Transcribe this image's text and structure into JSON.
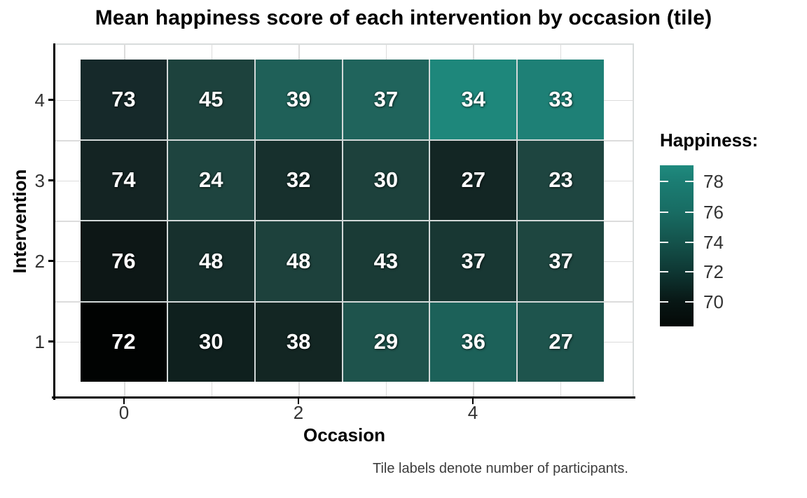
{
  "title": "Mean happiness score of each intervention by occasion (tile)",
  "caption": "Tile labels denote number of participants.",
  "x_axis": {
    "label": "Occasion",
    "tick_labels": [
      "0",
      "2",
      "4"
    ]
  },
  "y_axis": {
    "label": "Intervention",
    "tick_labels": [
      "4",
      "3",
      "2",
      "1"
    ]
  },
  "legend": {
    "title": "Happiness:",
    "tick_labels": [
      "78",
      "76",
      "74",
      "72",
      "70"
    ],
    "gradient_stops": [
      "#1f8a7e 0%",
      "#1b7d73 10%",
      "#186c63 29%",
      "#14524b 48%",
      "#0e3733 66%",
      "#081614 85%",
      "#040907 100%"
    ]
  },
  "colors": {
    "background": "#ffffff",
    "title": "#000000",
    "axis_line": "#000000",
    "tick_label": "#333333",
    "grid_line": "#dcdcdc",
    "panel_border": "#d8dcdc",
    "tile_seam": "#d3d9d9",
    "tile_label": "#ffffff",
    "caption": "#3d3d3d",
    "fill_low": "#040907",
    "fill_high": "#1f8a7e"
  },
  "chart_data": {
    "type": "heatmap",
    "title": "Mean happiness score of each intervention by occasion (tile)",
    "xlabel": "Occasion",
    "ylabel": "Intervention",
    "caption": "Tile labels denote number of participants.",
    "x_tick_values": [
      0,
      2,
      4
    ],
    "x_range": [
      -0.5,
      5.5
    ],
    "y_range": [
      0.5,
      4.5
    ],
    "occasions": [
      0,
      1,
      2,
      3,
      4,
      5
    ],
    "interventions_top_to_bottom": [
      4,
      3,
      2,
      1
    ],
    "fill_variable": "mean happiness score",
    "fill_scale": {
      "title": "Happiness:",
      "ticks": [
        78,
        76,
        74,
        72,
        70
      ],
      "low_color": "#040907",
      "high_color": "#1f8a7e"
    },
    "tile_labels_meaning": "number of participants",
    "grid": true,
    "legend_position": "right",
    "rows": [
      {
        "intervention": 4,
        "participants": [
          73,
          45,
          39,
          37,
          34,
          33
        ],
        "happiness_estimated_from_color": [
          70.8,
          72.5,
          75.0,
          75.2,
          78.3,
          77.9
        ],
        "fills": [
          "#16292a",
          "#1d423d",
          "#1f6058",
          "#20645c",
          "#1e877b",
          "#1e8076"
        ]
      },
      {
        "intervention": 3,
        "participants": [
          74,
          24,
          32,
          30,
          27,
          23
        ],
        "happiness_estimated_from_color": [
          70.5,
          72.6,
          71.1,
          72.4,
          70.6,
          72.7
        ],
        "fills": [
          "#142423",
          "#1e443f",
          "#17302d",
          "#1d413c",
          "#132624",
          "#1e4540"
        ]
      },
      {
        "intervention": 2,
        "participants": [
          76,
          48,
          48,
          43,
          37,
          37
        ],
        "happiness_estimated_from_color": [
          69.5,
          71.2,
          72.4,
          71.9,
          71.6,
          72.8
        ],
        "fills": [
          "#0d1716",
          "#17302d",
          "#1d413c",
          "#1a3b36",
          "#183733",
          "#1e4640"
        ]
      },
      {
        "intervention": 1,
        "participants": [
          72,
          30,
          38,
          29,
          36,
          27
        ],
        "happiness_estimated_from_color": [
          68.7,
          70.0,
          70.5,
          73.9,
          74.9,
          74.0
        ],
        "fills": [
          "#010302",
          "#0f201e",
          "#132623",
          "#1e534c",
          "#1c6159",
          "#1e544d"
        ]
      }
    ]
  }
}
